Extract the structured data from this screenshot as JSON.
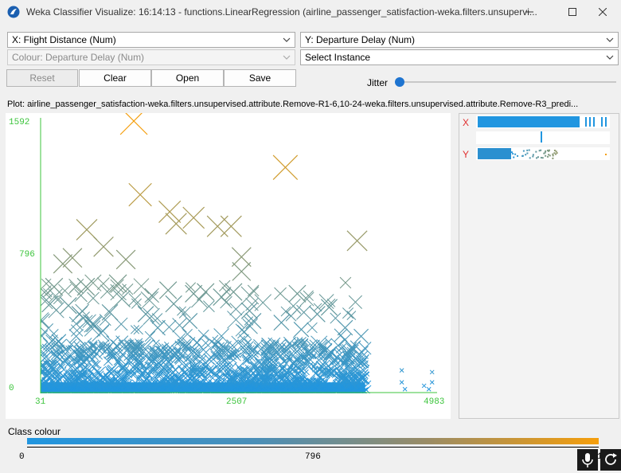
{
  "window": {
    "title": "Weka Classifier Visualize: 16:14:13 - functions.LinearRegression (airline_passenger_satisfaction-weka.filters.unsupervi...",
    "icons": [
      "weka-bird-icon",
      "minimize-icon",
      "maximize-icon",
      "close-icon"
    ]
  },
  "controls": {
    "x_axis": "X: Flight Distance (Num)",
    "y_axis": "Y: Departure Delay (Num)",
    "colour": "Colour: Departure Delay (Num)",
    "select_instance": "Select Instance",
    "reset_label": "Reset",
    "clear_label": "Clear",
    "open_label": "Open",
    "save_label": "Save",
    "jitter_label": "Jitter",
    "jitter_value": 0
  },
  "plot": {
    "title": "Plot: airline_passenger_satisfaction-weka.filters.unsupervised.attribute.Remove-R1-6,10-24-weka.filters.unsupervised.attribute.Remove-R3_predi...",
    "y_max_label": "1592",
    "y_mid_label": "796",
    "y_min_label": "0",
    "x_min_label": "31",
    "x_mid_label": "2507",
    "x_max_label": "4983",
    "axis_color": "#3cc43c"
  },
  "chart_data": {
    "type": "scatter",
    "title": "",
    "xlabel": "Flight Distance",
    "ylabel": "Departure Delay",
    "xlim": [
      31,
      4983
    ],
    "ylim": [
      0,
      1592
    ],
    "colour_by": "Departure Delay",
    "color_low": "#2196e0",
    "color_high": "#f59e0b",
    "points": [
      [
        1200,
        1592
      ],
      [
        3100,
        1320
      ],
      [
        1280,
        1160
      ],
      [
        1650,
        1060
      ],
      [
        1950,
        1025
      ],
      [
        1730,
        990
      ],
      [
        2250,
        975
      ],
      [
        2420,
        975
      ],
      [
        610,
        955
      ],
      [
        4000,
        890
      ],
      [
        2550,
        795
      ],
      [
        820,
        855
      ],
      [
        1100,
        780
      ],
      [
        310,
        755
      ],
      [
        430,
        790
      ],
      [
        2550,
        710
      ],
      [
        2450,
        590
      ],
      [
        3250,
        580
      ],
      [
        1630,
        600
      ],
      [
        1950,
        580
      ],
      [
        2100,
        590
      ],
      [
        1050,
        550
      ],
      [
        3650,
        500
      ],
      [
        2300,
        560
      ],
      [
        1350,
        460
      ],
      [
        1900,
        420
      ],
      [
        3050,
        410
      ],
      [
        3500,
        460
      ],
      [
        3850,
        380
      ],
      [
        700,
        400
      ],
      [
        200,
        620
      ],
      [
        150,
        520
      ],
      [
        380,
        510
      ],
      [
        520,
        460
      ],
      [
        900,
        470
      ],
      [
        1500,
        380
      ],
      [
        2700,
        420
      ],
      [
        3300,
        370
      ],
      [
        4050,
        330
      ],
      [
        600,
        620
      ],
      [
        1000,
        640
      ],
      [
        1700,
        520
      ],
      [
        2650,
        480
      ],
      [
        3950,
        260
      ],
      [
        260,
        300
      ]
    ],
    "sparse_points": [
      [
        4560,
        60
      ],
      [
        4560,
        130
      ],
      [
        4840,
        40
      ],
      [
        4940,
        60
      ],
      [
        4940,
        120
      ],
      [
        4600,
        20
      ],
      [
        4900,
        20
      ]
    ],
    "dense_region": {
      "x_range": [
        31,
        4100
      ],
      "y_range": [
        0,
        300
      ]
    }
  },
  "side_panel": {
    "x_label": "X",
    "y_label": "Y"
  },
  "legend": {
    "title": "Class colour",
    "tick_min": "0",
    "tick_mid": "796",
    "tick_max": "1592",
    "tray_icons": [
      "microphone-icon",
      "refresh-icon"
    ]
  }
}
